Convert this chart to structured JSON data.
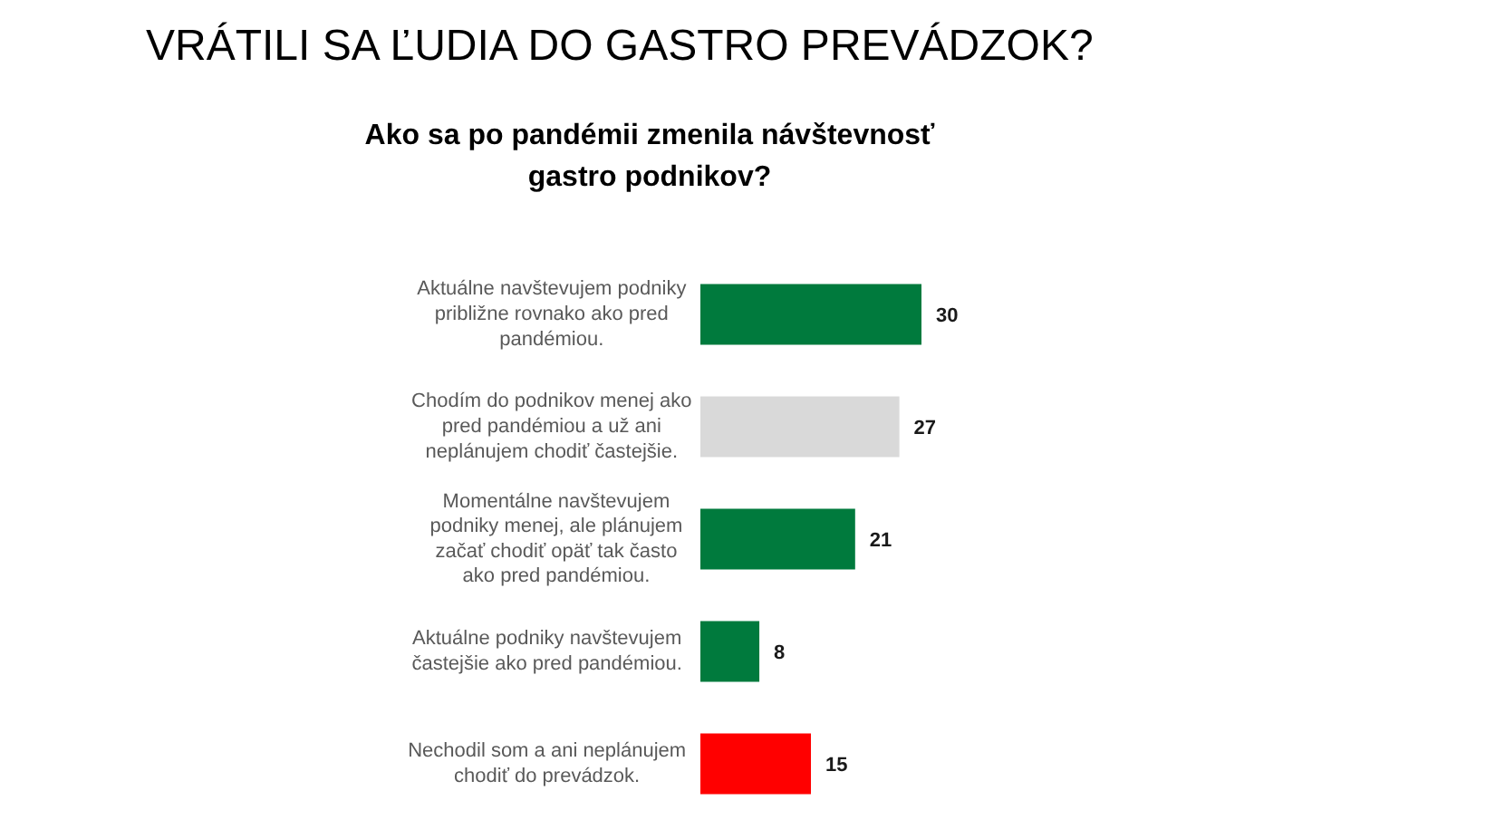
{
  "chart_data": {
    "type": "bar",
    "orientation": "horizontal",
    "title": "VRÁTILI SA ĽUDIA DO GASTRO PREVÁDZOK?",
    "subtitle": "Ako sa po pandémii zmenila návštevnosť gastro podnikov?",
    "categories": [
      "Aktuálne navštevujem podniky približne rovnako ako pred pandémiou.",
      "Chodím do podnikov menej ako pred pandémiou a už ani neplánujem chodiť častejšie.",
      "Momentálne navštevujem podniky menej, ale plánujem začať chodiť opäť tak často ako pred pandémiou.",
      "Aktuálne podniky navštevujem častejšie ako pred pandémiou.",
      "Nechodil som a ani neplánujem chodiť do prevádzok."
    ],
    "values": [
      30,
      27,
      21,
      8,
      15
    ],
    "colors": [
      "#007a3d",
      "#d9d9d9",
      "#007a3d",
      "#007a3d",
      "#ff0000"
    ],
    "data_labels": true,
    "tick_labels": "y"
  }
}
